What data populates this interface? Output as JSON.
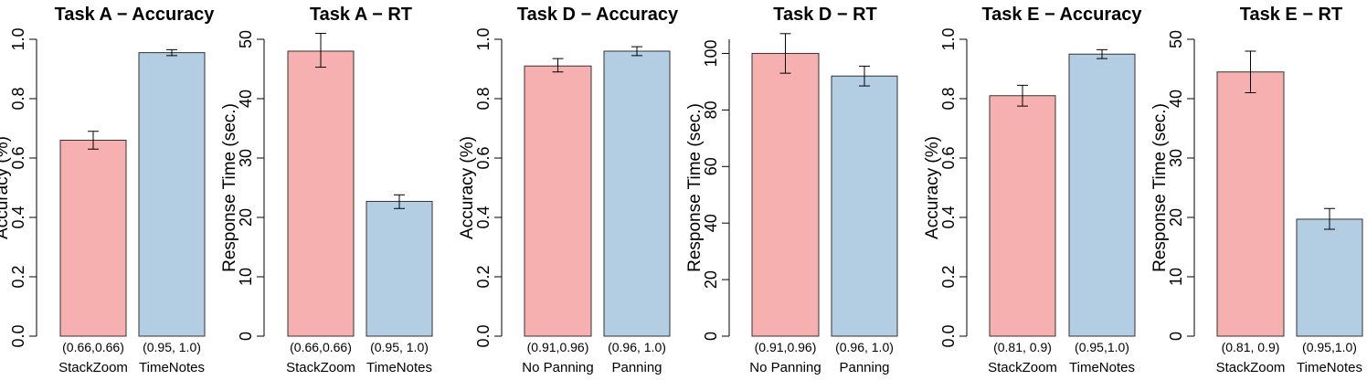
{
  "chart_data": [
    {
      "type": "bar",
      "title": "Task A − Accuracy",
      "ylabel": "Accuracy (%)",
      "ylim": [
        0,
        1.0
      ],
      "yticks": [
        "0.0",
        "0.2",
        "0.4",
        "0.6",
        "0.8",
        "1.0"
      ],
      "categories": [
        "StackZoom",
        "TimeNotes"
      ],
      "values": [
        0.66,
        0.955
      ],
      "err_low": [
        0.63,
        0.945
      ],
      "err_high": [
        0.69,
        0.965
      ],
      "interval_labels": [
        "(0.66,0.66)",
        "(0.95, 1.0)"
      ],
      "colors": [
        "#f7b0b0",
        "#b3cde3"
      ]
    },
    {
      "type": "bar",
      "title": "Task A − RT",
      "ylabel": "Response Time (sec.)",
      "ylim": [
        0,
        50
      ],
      "yticks": [
        "0",
        "10",
        "20",
        "30",
        "40",
        "50"
      ],
      "categories": [
        "StackZoom",
        "TimeNotes"
      ],
      "values": [
        48,
        22.7
      ],
      "err_low": [
        45.3,
        21.5
      ],
      "err_high": [
        51,
        23.8
      ],
      "interval_labels": [
        "(0.66,0.66)",
        "(0.95, 1.0)"
      ],
      "colors": [
        "#f7b0b0",
        "#b3cde3"
      ]
    },
    {
      "type": "bar",
      "title": "Task D − Accuracy",
      "ylabel": "Accuracy (%)",
      "ylim": [
        0,
        1.0
      ],
      "yticks": [
        "0.0",
        "0.2",
        "0.4",
        "0.6",
        "0.8",
        "1.0"
      ],
      "categories": [
        "No Panning",
        "Panning"
      ],
      "values": [
        0.91,
        0.96
      ],
      "err_low": [
        0.89,
        0.945
      ],
      "err_high": [
        0.935,
        0.975
      ],
      "interval_labels": [
        "(0.91,0.96)",
        "(0.96, 1.0)"
      ],
      "colors": [
        "#f7b0b0",
        "#b3cde3"
      ]
    },
    {
      "type": "bar",
      "title": "Task D − RT",
      "ylabel": "Response Time (sec.)",
      "ylim": [
        0,
        105
      ],
      "yticks": [
        "0",
        "20",
        "40",
        "60",
        "80",
        "100"
      ],
      "categories": [
        "No Panning",
        "Panning"
      ],
      "values": [
        100,
        92
      ],
      "err_low": [
        93,
        88.5
      ],
      "err_high": [
        107,
        95.5
      ],
      "interval_labels": [
        "(0.91,0.96)",
        "(0.96, 1.0)"
      ],
      "colors": [
        "#f7b0b0",
        "#b3cde3"
      ]
    },
    {
      "type": "bar",
      "title": "Task E − Accuracy",
      "ylabel": "Accuracy (%)",
      "ylim": [
        0,
        1.0
      ],
      "yticks": [
        "0.0",
        "0.2",
        "0.4",
        "0.6",
        "0.8",
        "1.0"
      ],
      "categories": [
        "StackZoom",
        "TimeNotes"
      ],
      "values": [
        0.81,
        0.95
      ],
      "err_low": [
        0.775,
        0.935
      ],
      "err_high": [
        0.845,
        0.965
      ],
      "interval_labels": [
        "(0.81, 0.9)",
        "(0.95,1.0)"
      ],
      "colors": [
        "#f7b0b0",
        "#b3cde3"
      ]
    },
    {
      "type": "bar",
      "title": "Task E − RT",
      "ylabel": "Response Time (sec.)",
      "ylim": [
        0,
        50
      ],
      "yticks": [
        "0",
        "10",
        "20",
        "30",
        "40",
        "50"
      ],
      "categories": [
        "StackZoom",
        "TimeNotes"
      ],
      "values": [
        44.5,
        19.7
      ],
      "err_low": [
        41,
        18
      ],
      "err_high": [
        48,
        21.5
      ],
      "interval_labels": [
        "(0.81, 0.9)",
        "(0.95,1.0)"
      ],
      "colors": [
        "#f7b0b0",
        "#b3cde3"
      ]
    }
  ]
}
